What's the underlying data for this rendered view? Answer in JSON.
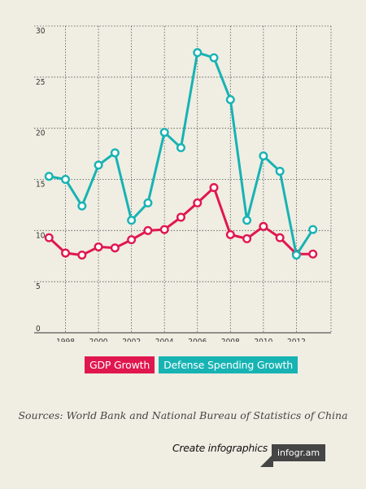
{
  "chart_data": {
    "type": "line",
    "x": [
      1997,
      1998,
      1999,
      2000,
      2001,
      2002,
      2003,
      2004,
      2005,
      2006,
      2007,
      2008,
      2009,
      2010,
      2011,
      2012,
      2013
    ],
    "x_ticks": [
      "1998",
      "2000",
      "2002",
      "2004",
      "2006",
      "2008",
      "2010",
      "2012"
    ],
    "y_ticks": [
      "0",
      "5",
      "10",
      "15",
      "20",
      "25",
      "30"
    ],
    "ylim": [
      0,
      30
    ],
    "xlim": [
      1996.1,
      2014.1
    ],
    "grid": true,
    "legend_position": "bottom",
    "series": [
      {
        "name": "GDP Growth",
        "color": "#e0174f",
        "values": [
          9.3,
          7.8,
          7.6,
          8.4,
          8.3,
          9.1,
          10.0,
          10.1,
          11.3,
          12.7,
          14.2,
          9.6,
          9.2,
          10.4,
          9.3,
          7.7,
          7.7
        ]
      },
      {
        "name": "Defense Spending Growth",
        "color": "#17b3b3",
        "values": [
          15.3,
          15.0,
          12.4,
          16.4,
          17.6,
          11.0,
          12.7,
          19.6,
          18.1,
          27.4,
          26.9,
          22.8,
          11.0,
          17.3,
          15.8,
          7.6,
          10.1
        ]
      }
    ]
  },
  "source": "Sources: World Bank and National Bureau of Statistics of China",
  "credit": "Create infographics",
  "badge": "infogr.am"
}
